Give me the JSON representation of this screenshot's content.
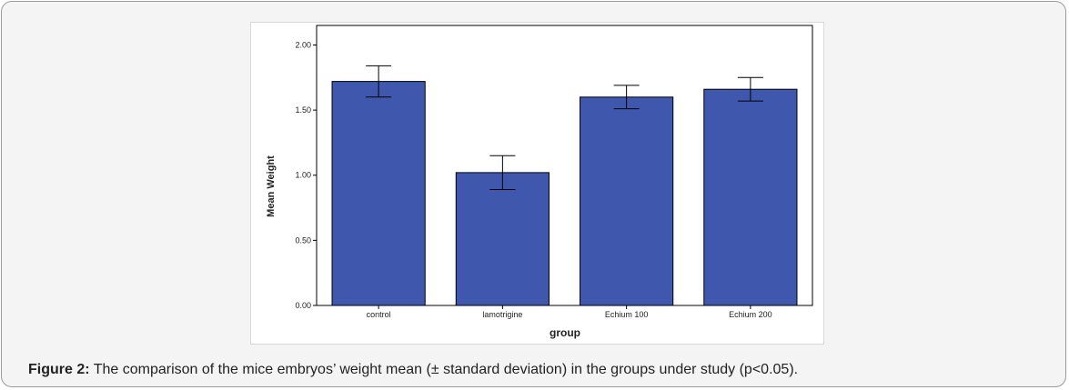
{
  "caption": {
    "label": "Figure 2:",
    "text": " The comparison of the mice embryos’ weight mean (± standard deviation) in the groups under study (p<0.05)."
  },
  "chart_data": {
    "type": "bar",
    "categories": [
      "control",
      "lamotrigine",
      "Echium 100",
      "Echium 200"
    ],
    "values": [
      1.72,
      1.02,
      1.6,
      1.66
    ],
    "error": [
      0.12,
      0.13,
      0.09,
      0.09
    ],
    "xlabel": "group",
    "ylabel": "Mean Weight",
    "ylim": [
      0,
      2.15
    ],
    "yticks": [
      0.0,
      0.5,
      1.0,
      1.5,
      2.0
    ],
    "ytick_labels": [
      "0.00",
      "0.50",
      "1.00",
      "1.50",
      "2.00"
    ],
    "bar_color": "#3f58ae",
    "grid": false
  }
}
